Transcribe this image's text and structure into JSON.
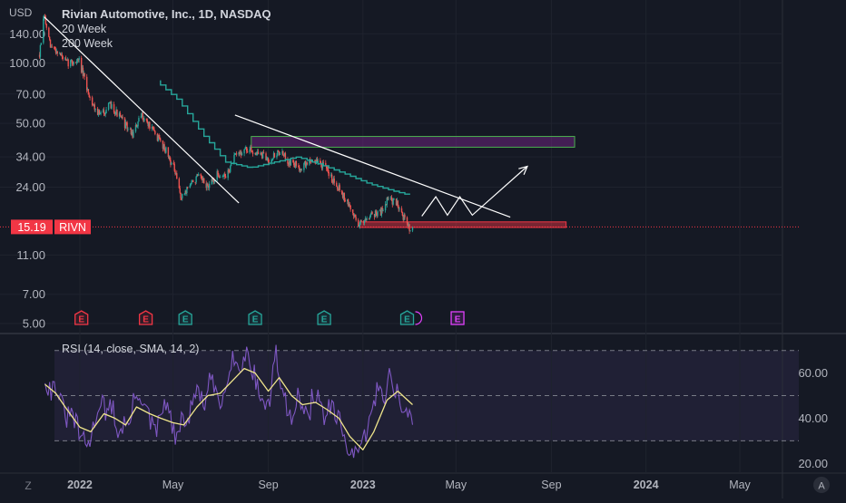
{
  "header": {
    "currency": "USD",
    "title": "Rivian Automotive, Inc., 1D, NASDAQ",
    "ma_labels": [
      "20 Week",
      "200 Week"
    ]
  },
  "price_tag": {
    "value": "15.19",
    "ticker": "RIVN"
  },
  "rsi_title": "RSI (14, close, SMA, 14, 2)",
  "corner_labels": {
    "left": "Z",
    "right": "A"
  },
  "chart_data": [
    {
      "type": "candlestick",
      "title": "Rivian Automotive, Inc., 1D, NASDAQ",
      "yscale": "log",
      "ylabel": "USD",
      "yticks": [
        "140.00",
        "100.00",
        "70.00",
        "50.00",
        "34.00",
        "24.00",
        "11.00",
        "7.00",
        "5.00"
      ],
      "ytick_values": [
        140,
        100,
        70,
        50,
        34,
        24,
        11,
        7,
        5
      ],
      "ylim": [
        4.6,
        190
      ],
      "x_tick_labels": [
        "2022",
        "May",
        "Sep",
        "2023",
        "May",
        "Sep",
        "2024",
        "May"
      ],
      "x_tick_dates": [
        "2022-01-01",
        "2022-05-01",
        "2022-09-01",
        "2023-01-01",
        "2023-05-01",
        "2023-09-01",
        "2024-01-01",
        "2024-05-01"
      ],
      "xlim": [
        "2021-09-20",
        "2024-06-25"
      ],
      "last_price": 15.19,
      "price_path": [
        [
          "2021-11-10",
          110
        ],
        [
          "2021-11-16",
          172
        ],
        [
          "2021-11-24",
          120
        ],
        [
          "2021-12-03",
          115
        ],
        [
          "2021-12-15",
          100
        ],
        [
          "2021-12-31",
          103
        ],
        [
          "2022-01-10",
          75
        ],
        [
          "2022-01-18",
          62
        ],
        [
          "2022-01-27",
          55
        ],
        [
          "2022-02-10",
          62
        ],
        [
          "2022-02-24",
          52
        ],
        [
          "2022-03-10",
          44
        ],
        [
          "2022-03-22",
          55
        ],
        [
          "2022-04-05",
          46
        ],
        [
          "2022-04-20",
          38
        ],
        [
          "2022-05-02",
          30
        ],
        [
          "2022-05-12",
          21
        ],
        [
          "2022-05-20",
          24
        ],
        [
          "2022-06-02",
          27
        ],
        [
          "2022-06-16",
          24
        ],
        [
          "2022-06-28",
          28
        ],
        [
          "2022-07-08",
          27
        ],
        [
          "2022-07-20",
          34
        ],
        [
          "2022-08-01",
          37
        ],
        [
          "2022-08-16",
          36
        ],
        [
          "2022-09-01",
          33
        ],
        [
          "2022-09-15",
          36
        ],
        [
          "2022-09-29",
          32
        ],
        [
          "2022-10-13",
          30
        ],
        [
          "2022-10-27",
          33
        ],
        [
          "2022-11-10",
          31
        ],
        [
          "2022-11-21",
          27
        ],
        [
          "2022-12-01",
          24
        ],
        [
          "2022-12-15",
          19
        ],
        [
          "2022-12-27",
          15.6
        ],
        [
          "2023-01-10",
          17.6
        ],
        [
          "2023-01-24",
          18
        ],
        [
          "2023-02-02",
          21
        ],
        [
          "2023-02-15",
          19.8
        ],
        [
          "2023-02-28",
          15.2
        ],
        [
          "2023-03-06",
          15.19
        ]
      ],
      "ma_20_week": [
        [
          "2022-04-15",
          82
        ],
        [
          "2022-05-15",
          65
        ],
        [
          "2022-06-15",
          44
        ],
        [
          "2022-07-15",
          32
        ],
        [
          "2022-08-15",
          30
        ],
        [
          "2022-09-15",
          32
        ],
        [
          "2022-10-15",
          34
        ],
        [
          "2022-11-15",
          31
        ],
        [
          "2022-12-15",
          28
        ],
        [
          "2023-01-15",
          25
        ],
        [
          "2023-02-15",
          23
        ],
        [
          "2023-03-06",
          22
        ]
      ],
      "boxes": [
        {
          "from": "2022-08-10",
          "to": "2023-10-01",
          "top": 43,
          "bottom": 38,
          "color": "#4caf50"
        },
        {
          "from": "2022-12-28",
          "to": "2023-09-20",
          "top": 16.1,
          "bottom": 15.1,
          "color": "#f23645"
        }
      ],
      "trendlines": [
        {
          "from": [
            "2021-11-16",
            170
          ],
          "to": [
            "2022-07-25",
            20
          ]
        },
        {
          "from": [
            "2022-07-20",
            55
          ],
          "to": [
            "2023-07-10",
            17
          ]
        }
      ],
      "projection": [
        [
          "2023-03-18",
          17.2
        ],
        [
          "2023-04-05",
          21.5
        ],
        [
          "2023-04-20",
          17.4
        ],
        [
          "2023-05-06",
          21.5
        ],
        [
          "2023-05-22",
          17.4
        ],
        [
          "2023-08-01",
          30.5
        ]
      ],
      "earnings_markers": [
        {
          "date": "2022-01-03",
          "label": "E",
          "kind": "miss"
        },
        {
          "date": "2022-03-27",
          "label": "E",
          "kind": "miss"
        },
        {
          "date": "2022-05-17",
          "label": "E",
          "kind": "beat"
        },
        {
          "date": "2022-08-15",
          "label": "E",
          "kind": "beat"
        },
        {
          "date": "2022-11-12",
          "label": "E",
          "kind": "beat"
        },
        {
          "date": "2023-02-27",
          "label": "E",
          "kind": "beat"
        },
        {
          "date": "2023-05-03",
          "label": "E",
          "kind": "upcoming"
        }
      ]
    },
    {
      "type": "line",
      "title": "RSI (14, close, SMA, 14, 2)",
      "yticks": [
        "60.00",
        "40.00",
        "20.00"
      ],
      "ytick_values": [
        60,
        40,
        20
      ],
      "ylim": [
        16.5,
        75.5
      ],
      "band": [
        30,
        70
      ],
      "midline": 50,
      "series": [
        {
          "values": [
            [
              "2021-11-17",
              58
            ],
            [
              "2021-11-24",
              52
            ],
            [
              "2021-12-01",
              55
            ],
            [
              "2021-12-08",
              46
            ],
            [
              "2021-12-15",
              40
            ],
            [
              "2021-12-22",
              42
            ],
            [
              "2022-01-01",
              33
            ],
            [
              "2022-01-08",
              28
            ],
            [
              "2022-01-15",
              30
            ],
            [
              "2022-01-22",
              42
            ],
            [
              "2022-01-29",
              50
            ],
            [
              "2022-02-05",
              40
            ],
            [
              "2022-02-12",
              47
            ],
            [
              "2022-02-19",
              32
            ],
            [
              "2022-02-26",
              38
            ],
            [
              "2022-03-05",
              36
            ],
            [
              "2022-03-12",
              48
            ],
            [
              "2022-03-19",
              52
            ],
            [
              "2022-03-26",
              45
            ],
            [
              "2022-04-02",
              38
            ],
            [
              "2022-04-09",
              33
            ],
            [
              "2022-04-16",
              42
            ],
            [
              "2022-04-23",
              48
            ],
            [
              "2022-04-30",
              35
            ],
            [
              "2022-05-07",
              30
            ],
            [
              "2022-05-14",
              41
            ],
            [
              "2022-05-21",
              38
            ],
            [
              "2022-05-28",
              50
            ],
            [
              "2022-06-04",
              52
            ],
            [
              "2022-06-11",
              45
            ],
            [
              "2022-06-18",
              57
            ],
            [
              "2022-06-25",
              52
            ],
            [
              "2022-07-02",
              45
            ],
            [
              "2022-07-09",
              58
            ],
            [
              "2022-07-16",
              68
            ],
            [
              "2022-07-23",
              62
            ],
            [
              "2022-07-30",
              65
            ],
            [
              "2022-08-06",
              70
            ],
            [
              "2022-08-13",
              60
            ],
            [
              "2022-08-20",
              52
            ],
            [
              "2022-08-27",
              45
            ],
            [
              "2022-09-03",
              48
            ],
            [
              "2022-09-10",
              70
            ],
            [
              "2022-09-17",
              55
            ],
            [
              "2022-09-24",
              45
            ],
            [
              "2022-10-01",
              42
            ],
            [
              "2022-10-08",
              50
            ],
            [
              "2022-10-15",
              45
            ],
            [
              "2022-10-22",
              38
            ],
            [
              "2022-10-29",
              52
            ],
            [
              "2022-11-05",
              48
            ],
            [
              "2022-11-12",
              40
            ],
            [
              "2022-11-19",
              45
            ],
            [
              "2022-11-26",
              41
            ],
            [
              "2022-12-03",
              37
            ],
            [
              "2022-12-10",
              30
            ],
            [
              "2022-12-17",
              24
            ],
            [
              "2022-12-24",
              22
            ],
            [
              "2022-12-31",
              28
            ],
            [
              "2023-01-07",
              36
            ],
            [
              "2023-01-14",
              44
            ],
            [
              "2023-01-21",
              55
            ],
            [
              "2023-01-28",
              50
            ],
            [
              "2023-02-04",
              58
            ],
            [
              "2023-02-11",
              54
            ],
            [
              "2023-02-18",
              48
            ],
            [
              "2023-02-25",
              42
            ],
            [
              "2023-03-06",
              38
            ]
          ],
          "color": "#7e57c2"
        },
        {
          "values": [
            [
              "2021-11-17",
              55
            ],
            [
              "2021-12-01",
              51
            ],
            [
              "2021-12-15",
              44
            ],
            [
              "2022-01-01",
              36
            ],
            [
              "2022-01-15",
              34
            ],
            [
              "2022-02-01",
              42
            ],
            [
              "2022-02-15",
              40
            ],
            [
              "2022-03-01",
              37
            ],
            [
              "2022-03-15",
              45
            ],
            [
              "2022-04-01",
              42
            ],
            [
              "2022-04-15",
              40
            ],
            [
              "2022-05-01",
              38
            ],
            [
              "2022-05-15",
              37
            ],
            [
              "2022-06-01",
              45
            ],
            [
              "2022-06-15",
              50
            ],
            [
              "2022-07-01",
              51
            ],
            [
              "2022-07-15",
              56
            ],
            [
              "2022-08-01",
              62
            ],
            [
              "2022-08-15",
              60
            ],
            [
              "2022-09-01",
              52
            ],
            [
              "2022-09-15",
              58
            ],
            [
              "2022-10-01",
              50
            ],
            [
              "2022-10-15",
              46
            ],
            [
              "2022-11-01",
              47
            ],
            [
              "2022-11-15",
              44
            ],
            [
              "2022-12-01",
              40
            ],
            [
              "2022-12-15",
              32
            ],
            [
              "2023-01-01",
              26
            ],
            [
              "2023-01-15",
              34
            ],
            [
              "2023-02-01",
              48
            ],
            [
              "2023-02-15",
              52
            ],
            [
              "2023-03-06",
              46
            ]
          ],
          "color": "#f0e68c"
        }
      ]
    }
  ]
}
